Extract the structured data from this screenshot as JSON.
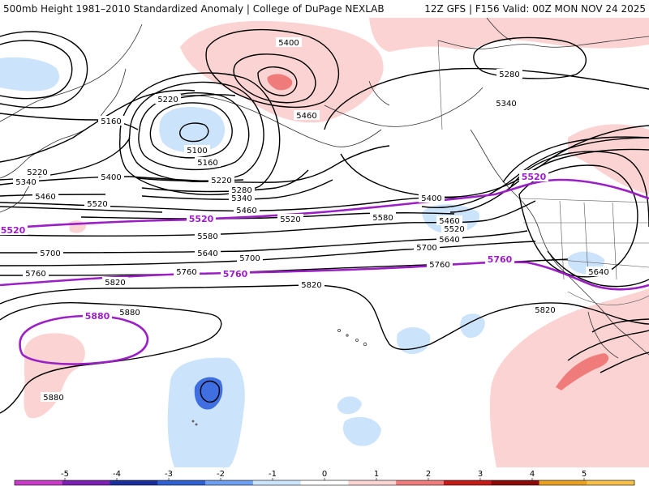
{
  "header": {
    "title_left": "500mb Height 1981–2010 Standardized Anomaly | College of DuPage NEXLAB",
    "title_right": "12Z GFS | F156 Valid: 00Z MON NOV 24 2025"
  },
  "colors": {
    "contour": "#000000",
    "highlight_contour": "#9b1fc4",
    "anom_neg1": "#cce4fb",
    "anom_neg2": "#3f6fe0",
    "anom_pos1": "#fbd3d3",
    "anom_pos2": "#f07b7b",
    "coastline": "#333333"
  },
  "contour_labels": {
    "c5400_a": "5400",
    "c5460_a": "5460",
    "c5220_a": "5220",
    "c5160_a": "5160",
    "c5100": "5100",
    "c5160_b": "5160",
    "c5280_a": "5280",
    "c5340_a": "5340",
    "c5220_b": "5220",
    "c5340_b": "5340",
    "c5460_b": "5460",
    "c5400_b": "5400",
    "c5220_c": "5220",
    "c5280_b": "5280",
    "c5340_c": "5340",
    "c5460_c": "5460",
    "c5520_a": "5520",
    "c5520_b": "5520",
    "c5520_c": "5520",
    "c5520_d": "5520",
    "c5400_c": "5400",
    "c5460_d": "5460",
    "c5520_e": "5520",
    "c5520_f": "5520",
    "c5580_a": "5580",
    "c5580_b": "5580",
    "c5640_a": "5640",
    "c5640_b": "5640",
    "c5640_c": "5640",
    "c5700_a": "5700",
    "c5700_b": "5700",
    "c5700_c": "5700",
    "c5760_a": "5760",
    "c5760_b": "5760",
    "c5760_c": "5760",
    "c5760_d": "5760",
    "c5760_e": "5760",
    "c5820_a": "5820",
    "c5820_b": "5820",
    "c5820_c": "5820",
    "c5880_a": "5880",
    "c5880_b": "5880",
    "c5880_c": "5880"
  },
  "colorbar": {
    "ticks": [
      "-5",
      "-4",
      "-3",
      "-2",
      "-1",
      "0",
      "1",
      "2",
      "3",
      "4",
      "5"
    ],
    "colors": [
      "#c83cc8",
      "#7a1fb0",
      "#1b2f9c",
      "#2f5fd0",
      "#6f9ff0",
      "#cce4fb",
      "#ffffff",
      "#fbd3d3",
      "#f07b7b",
      "#c41a1a",
      "#8a0a0a",
      "#e8a020",
      "#f5c04a"
    ]
  }
}
